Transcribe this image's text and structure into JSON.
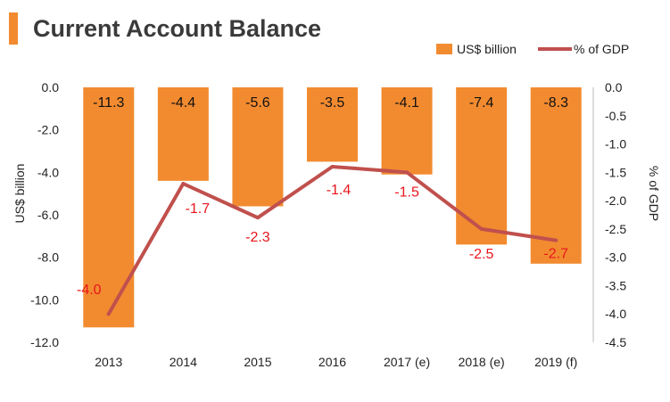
{
  "title": "Current Account Balance",
  "colors": {
    "accent": "#f28b30",
    "bar": "#f28b30",
    "line": "#c0504d",
    "line_label": "#e8161c",
    "title": "#3a3a3a"
  },
  "chart_data": {
    "type": "bar",
    "title": "Current Account Balance",
    "categories": [
      "2013",
      "2014",
      "2015",
      "2016",
      "2017 (e)",
      "2018 (e)",
      "2019 (f)"
    ],
    "series": [
      {
        "name": "US$ billion",
        "type": "bar",
        "axis": "left",
        "values": [
          -11.3,
          -4.4,
          -5.6,
          -3.5,
          -4.1,
          -7.4,
          -8.3
        ],
        "labels": [
          "-11.3",
          "-4.4",
          "-5.6",
          "-3.5",
          "-4.1",
          "-7.4",
          "-8.3"
        ]
      },
      {
        "name": "% of GDP",
        "type": "line",
        "axis": "right",
        "values": [
          -4.0,
          -1.7,
          -2.3,
          -1.4,
          -1.5,
          -2.5,
          -2.7
        ],
        "labels": [
          "-4.0",
          "-1.7",
          "-2.3",
          "-1.4",
          "-1.5",
          "-2.5",
          "-2.7"
        ]
      }
    ],
    "ylabel": "US$ billion",
    "y2label": "% of GDP",
    "ylim": [
      -12,
      0
    ],
    "y2lim": [
      -4.5,
      0
    ],
    "yticks": [
      "0.0",
      "-2.0",
      "-4.0",
      "-6.0",
      "-8.0",
      "-10.0",
      "-12.0"
    ],
    "ytick_values": [
      0,
      -2,
      -4,
      -6,
      -8,
      -10,
      -12
    ],
    "y2ticks": [
      "0.0",
      "-0.5",
      "-1.0",
      "-1.5",
      "-2.0",
      "-2.5",
      "-3.0",
      "-3.5",
      "-4.0",
      "-4.5"
    ],
    "y2tick_values": [
      0,
      -0.5,
      -1,
      -1.5,
      -2,
      -2.5,
      -3,
      -3.5,
      -4,
      -4.5
    ],
    "grid": false,
    "legend_position": "top-right"
  }
}
